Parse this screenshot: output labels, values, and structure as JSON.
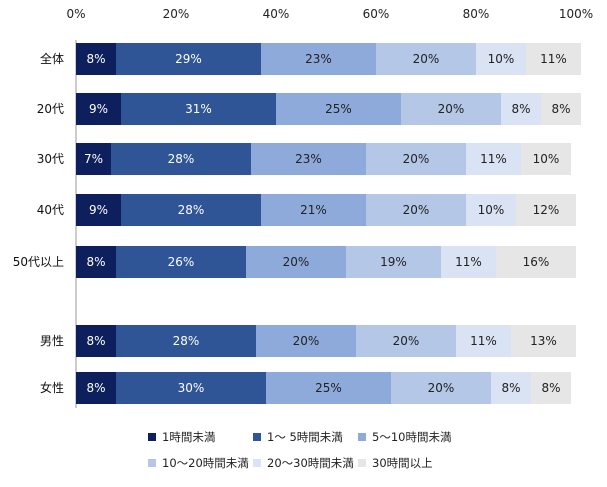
{
  "chart_data": {
    "type": "bar",
    "orientation": "horizontal",
    "stacked": true,
    "xlim": [
      0,
      100
    ],
    "x_ticks": [
      "0%",
      "20%",
      "40%",
      "60%",
      "80%",
      "100%"
    ],
    "categories": [
      "全体",
      "20代",
      "30代",
      "40代",
      "50代以上",
      "男性",
      "女性"
    ],
    "series": [
      {
        "name": "1時間未満",
        "color": "#0d1f5c",
        "label_color": "#ffffff",
        "values": [
          8,
          9,
          7,
          9,
          8,
          8,
          8
        ],
        "labels": [
          "8%",
          "9%",
          "7%",
          "9%",
          "8%",
          "8%",
          "8%"
        ]
      },
      {
        "name": "1～ 5時間未満",
        "color": "#2f5597",
        "label_color": "#ffffff",
        "values": [
          29,
          31,
          28,
          28,
          26,
          28,
          30
        ],
        "labels": [
          "29%",
          "31%",
          "28%",
          "28%",
          "26%",
          "28%",
          "30%"
        ]
      },
      {
        "name": "5～10時間未満",
        "color": "#8eaadb",
        "label_color": "#222222",
        "values": [
          23,
          25,
          23,
          21,
          20,
          20,
          25
        ],
        "labels": [
          "23%",
          "25%",
          "23%",
          "21%",
          "20%",
          "20%",
          "25%"
        ]
      },
      {
        "name": "10～20時間未満",
        "color": "#b4c7e7",
        "label_color": "#222222",
        "values": [
          20,
          20,
          20,
          20,
          19,
          20,
          20
        ],
        "labels": [
          "20%",
          "20%",
          "20%",
          "20%",
          "19%",
          "20%",
          "20%"
        ]
      },
      {
        "name": "20～30時間未満",
        "color": "#dae3f3",
        "label_color": "#222222",
        "values": [
          10,
          8,
          11,
          10,
          11,
          11,
          8
        ],
        "labels": [
          "10%",
          "8%",
          "11%",
          "10%",
          "11%",
          "11%",
          "8%"
        ]
      },
      {
        "name": "30時間以上",
        "color": "#e6e6e6",
        "label_color": "#222222",
        "values": [
          11,
          8,
          10,
          12,
          16,
          13,
          8
        ],
        "labels": [
          "11%",
          "8%",
          "10%",
          "12%",
          "16%",
          "13%",
          "8%"
        ]
      }
    ],
    "legend_position": "bottom",
    "grid": false
  }
}
